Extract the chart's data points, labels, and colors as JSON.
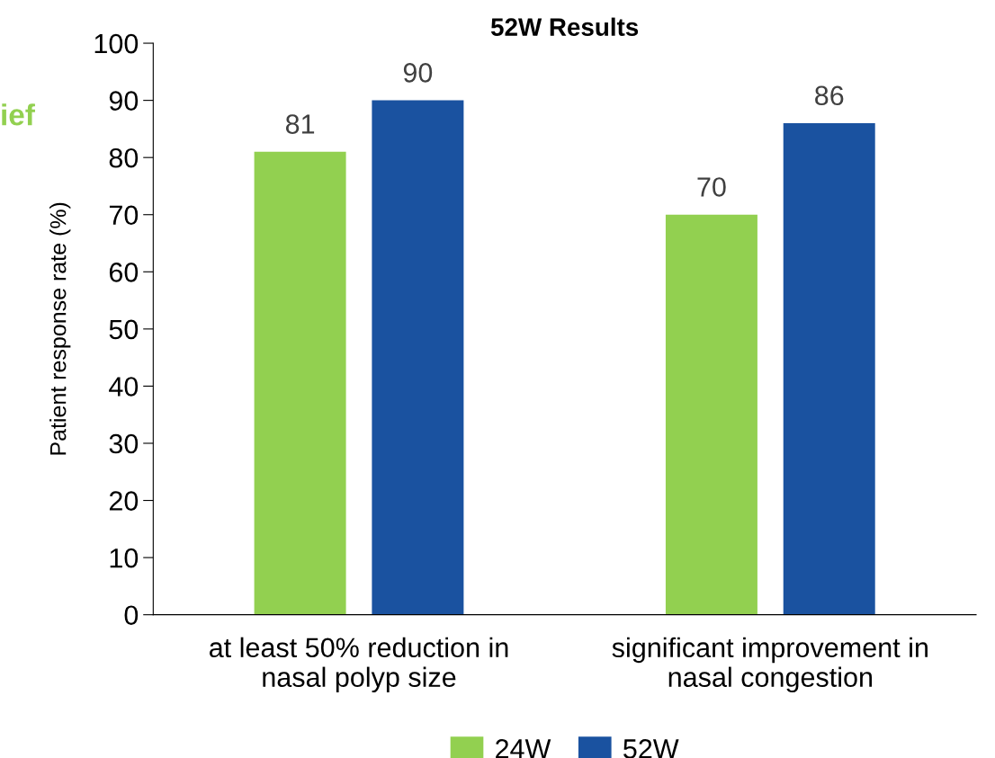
{
  "chart_data": {
    "type": "bar",
    "title": "52W Results",
    "ylabel": "Patient response rate (%)",
    "categories": [
      "at least 50% reduction in\nnasal polyp size",
      "significant improvement in\nnasal congestion"
    ],
    "series": [
      {
        "name": "24W",
        "color": "#92d050",
        "values": [
          81,
          70
        ]
      },
      {
        "name": "52W",
        "color": "#1a52a0",
        "values": [
          90,
          86
        ]
      }
    ],
    "ylim": [
      0,
      100
    ],
    "yticks": [
      0,
      10,
      20,
      30,
      40,
      50,
      60,
      70,
      80,
      90,
      100
    ],
    "data_labels": true,
    "legend": "bottom",
    "grid": false,
    "annotations": [
      "ief"
    ]
  }
}
